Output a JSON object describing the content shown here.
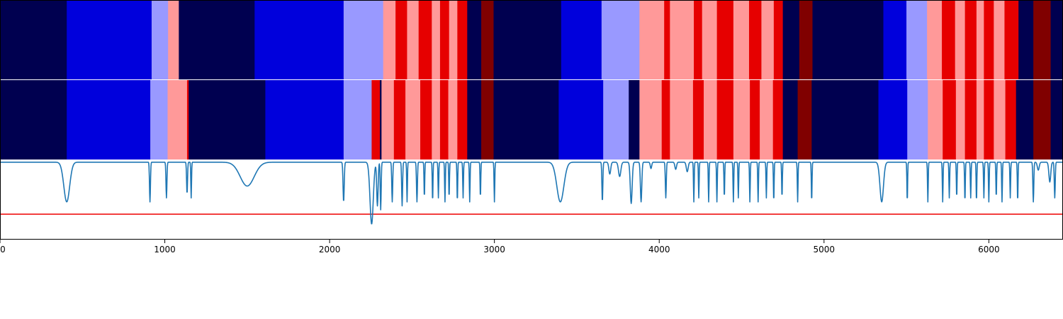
{
  "colors": {
    "-3": "#000050",
    "-2": "#0000dc",
    "-1": "#9999ff",
    "1": "#ff9999",
    "2": "#e60000",
    "3": "#800000",
    "signal": "#1f77b4",
    "threshold": "#ee0000",
    "axis": "#000000",
    "separator": "#ffffff"
  },
  "chart_data": {
    "type": "heatmap",
    "x_range": [
      0,
      6450
    ],
    "x_ticks": [
      "0",
      "1000",
      "2000",
      "3000",
      "4000",
      "5000",
      "6000"
    ],
    "x_tick_values": [
      0,
      1000,
      2000,
      3000,
      4000,
      5000,
      6000
    ],
    "state_rows": [
      {
        "segments": [
          [
            0,
            405,
            -3
          ],
          [
            405,
            920,
            -2
          ],
          [
            920,
            1020,
            -1
          ],
          [
            1020,
            1085,
            1
          ],
          [
            1085,
            1545,
            -3
          ],
          [
            1545,
            2085,
            -2
          ],
          [
            2085,
            2325,
            -1
          ],
          [
            2325,
            2400,
            1
          ],
          [
            2400,
            2470,
            2
          ],
          [
            2470,
            2540,
            1
          ],
          [
            2540,
            2620,
            2
          ],
          [
            2620,
            2670,
            1
          ],
          [
            2670,
            2725,
            2
          ],
          [
            2725,
            2775,
            1
          ],
          [
            2775,
            2835,
            2
          ],
          [
            2835,
            2920,
            -3
          ],
          [
            2920,
            2995,
            3
          ],
          [
            2995,
            3405,
            -3
          ],
          [
            3405,
            3650,
            -2
          ],
          [
            3650,
            3880,
            -1
          ],
          [
            3880,
            4030,
            1
          ],
          [
            4030,
            4065,
            2
          ],
          [
            4065,
            4210,
            1
          ],
          [
            4210,
            4260,
            2
          ],
          [
            4260,
            4350,
            1
          ],
          [
            4350,
            4450,
            2
          ],
          [
            4450,
            4545,
            1
          ],
          [
            4545,
            4620,
            2
          ],
          [
            4620,
            4695,
            1
          ],
          [
            4695,
            4750,
            2
          ],
          [
            4750,
            4850,
            -3
          ],
          [
            4850,
            4930,
            3
          ],
          [
            4930,
            5360,
            -3
          ],
          [
            5360,
            5500,
            -2
          ],
          [
            5500,
            5625,
            -1
          ],
          [
            5625,
            5715,
            1
          ],
          [
            5715,
            5795,
            2
          ],
          [
            5795,
            5855,
            1
          ],
          [
            5855,
            5925,
            2
          ],
          [
            5925,
            5970,
            1
          ],
          [
            5970,
            6030,
            2
          ],
          [
            6030,
            6095,
            1
          ],
          [
            6095,
            6180,
            2
          ],
          [
            6180,
            6270,
            -3
          ],
          [
            6270,
            6375,
            3
          ],
          [
            6375,
            6450,
            -3
          ]
        ]
      },
      {
        "segments": [
          [
            0,
            405,
            -3
          ],
          [
            405,
            912,
            -2
          ],
          [
            912,
            1017,
            -1
          ],
          [
            1017,
            1135,
            1
          ],
          [
            1135,
            1145,
            2
          ],
          [
            1145,
            1610,
            -3
          ],
          [
            1610,
            2085,
            -2
          ],
          [
            2085,
            2255,
            -1
          ],
          [
            2255,
            2305,
            2
          ],
          [
            2305,
            2315,
            -3
          ],
          [
            2315,
            2390,
            1
          ],
          [
            2390,
            2460,
            2
          ],
          [
            2460,
            2550,
            1
          ],
          [
            2550,
            2620,
            2
          ],
          [
            2620,
            2670,
            1
          ],
          [
            2670,
            2720,
            2
          ],
          [
            2720,
            2775,
            1
          ],
          [
            2775,
            2835,
            2
          ],
          [
            2835,
            2920,
            -3
          ],
          [
            2920,
            2995,
            3
          ],
          [
            2995,
            3390,
            -3
          ],
          [
            3390,
            3660,
            -2
          ],
          [
            3660,
            3815,
            -1
          ],
          [
            3815,
            3880,
            -3
          ],
          [
            3880,
            4015,
            1
          ],
          [
            4015,
            4065,
            2
          ],
          [
            4065,
            4205,
            1
          ],
          [
            4205,
            4270,
            2
          ],
          [
            4270,
            4350,
            1
          ],
          [
            4350,
            4450,
            2
          ],
          [
            4450,
            4550,
            1
          ],
          [
            4550,
            4610,
            2
          ],
          [
            4610,
            4690,
            1
          ],
          [
            4690,
            4750,
            2
          ],
          [
            4750,
            4840,
            -3
          ],
          [
            4840,
            4925,
            3
          ],
          [
            4925,
            5330,
            -3
          ],
          [
            5330,
            5505,
            -2
          ],
          [
            5505,
            5630,
            -1
          ],
          [
            5630,
            5720,
            1
          ],
          [
            5720,
            5800,
            2
          ],
          [
            5800,
            5855,
            1
          ],
          [
            5855,
            5925,
            2
          ],
          [
            5925,
            5970,
            1
          ],
          [
            5970,
            6030,
            2
          ],
          [
            6030,
            6100,
            1
          ],
          [
            6100,
            6165,
            2
          ],
          [
            6165,
            6270,
            -3
          ],
          [
            6270,
            6375,
            3
          ],
          [
            6375,
            6450,
            -3
          ]
        ]
      }
    ],
    "signal": {
      "y_range": [
        0,
        1
      ],
      "baseline": 0.975,
      "threshold": 0.32,
      "dips": [
        [
          405,
          0.5,
          25
        ],
        [
          910,
          0.5,
          4
        ],
        [
          1010,
          0.45,
          4
        ],
        [
          1135,
          0.4,
          4
        ],
        [
          1160,
          0.45,
          3
        ],
        [
          1500,
          0.3,
          60
        ],
        [
          2085,
          0.5,
          5
        ],
        [
          2255,
          0.78,
          14
        ],
        [
          2290,
          0.55,
          6
        ],
        [
          2310,
          0.6,
          4
        ],
        [
          2380,
          0.5,
          4
        ],
        [
          2440,
          0.55,
          4
        ],
        [
          2470,
          0.5,
          3
        ],
        [
          2530,
          0.5,
          4
        ],
        [
          2575,
          0.45,
          3
        ],
        [
          2625,
          0.5,
          3
        ],
        [
          2660,
          0.45,
          3
        ],
        [
          2700,
          0.5,
          3
        ],
        [
          2725,
          0.45,
          3
        ],
        [
          2775,
          0.5,
          3
        ],
        [
          2810,
          0.45,
          3
        ],
        [
          2850,
          0.5,
          3
        ],
        [
          2915,
          0.45,
          3
        ],
        [
          3000,
          0.5,
          3
        ],
        [
          3400,
          0.5,
          30
        ],
        [
          3655,
          0.5,
          4
        ],
        [
          3700,
          0.15,
          8
        ],
        [
          3760,
          0.18,
          10
        ],
        [
          3830,
          0.52,
          8
        ],
        [
          3890,
          0.5,
          6
        ],
        [
          3950,
          0.08,
          6
        ],
        [
          4040,
          0.45,
          4
        ],
        [
          4100,
          0.09,
          7
        ],
        [
          4170,
          0.12,
          8
        ],
        [
          4210,
          0.5,
          3
        ],
        [
          4240,
          0.45,
          3
        ],
        [
          4300,
          0.5,
          3
        ],
        [
          4350,
          0.5,
          3
        ],
        [
          4395,
          0.45,
          3
        ],
        [
          4450,
          0.5,
          3
        ],
        [
          4480,
          0.45,
          3
        ],
        [
          4550,
          0.5,
          3
        ],
        [
          4600,
          0.5,
          3
        ],
        [
          4650,
          0.45,
          3
        ],
        [
          4695,
          0.5,
          3
        ],
        [
          4745,
          0.45,
          3
        ],
        [
          4840,
          0.5,
          3
        ],
        [
          4925,
          0.5,
          3
        ],
        [
          5350,
          0.5,
          15
        ],
        [
          5505,
          0.5,
          3
        ],
        [
          5630,
          0.5,
          3
        ],
        [
          5720,
          0.5,
          3
        ],
        [
          5760,
          0.45,
          3
        ],
        [
          5805,
          0.45,
          3
        ],
        [
          5855,
          0.5,
          3
        ],
        [
          5890,
          0.45,
          3
        ],
        [
          5925,
          0.5,
          3
        ],
        [
          5970,
          0.45,
          3
        ],
        [
          6000,
          0.5,
          3
        ],
        [
          6045,
          0.45,
          3
        ],
        [
          6080,
          0.5,
          3
        ],
        [
          6130,
          0.45,
          3
        ],
        [
          6175,
          0.5,
          3
        ],
        [
          6270,
          0.5,
          4
        ],
        [
          6300,
          0.1,
          8
        ],
        [
          6370,
          0.25,
          8
        ],
        [
          6400,
          0.45,
          4
        ]
      ]
    }
  }
}
